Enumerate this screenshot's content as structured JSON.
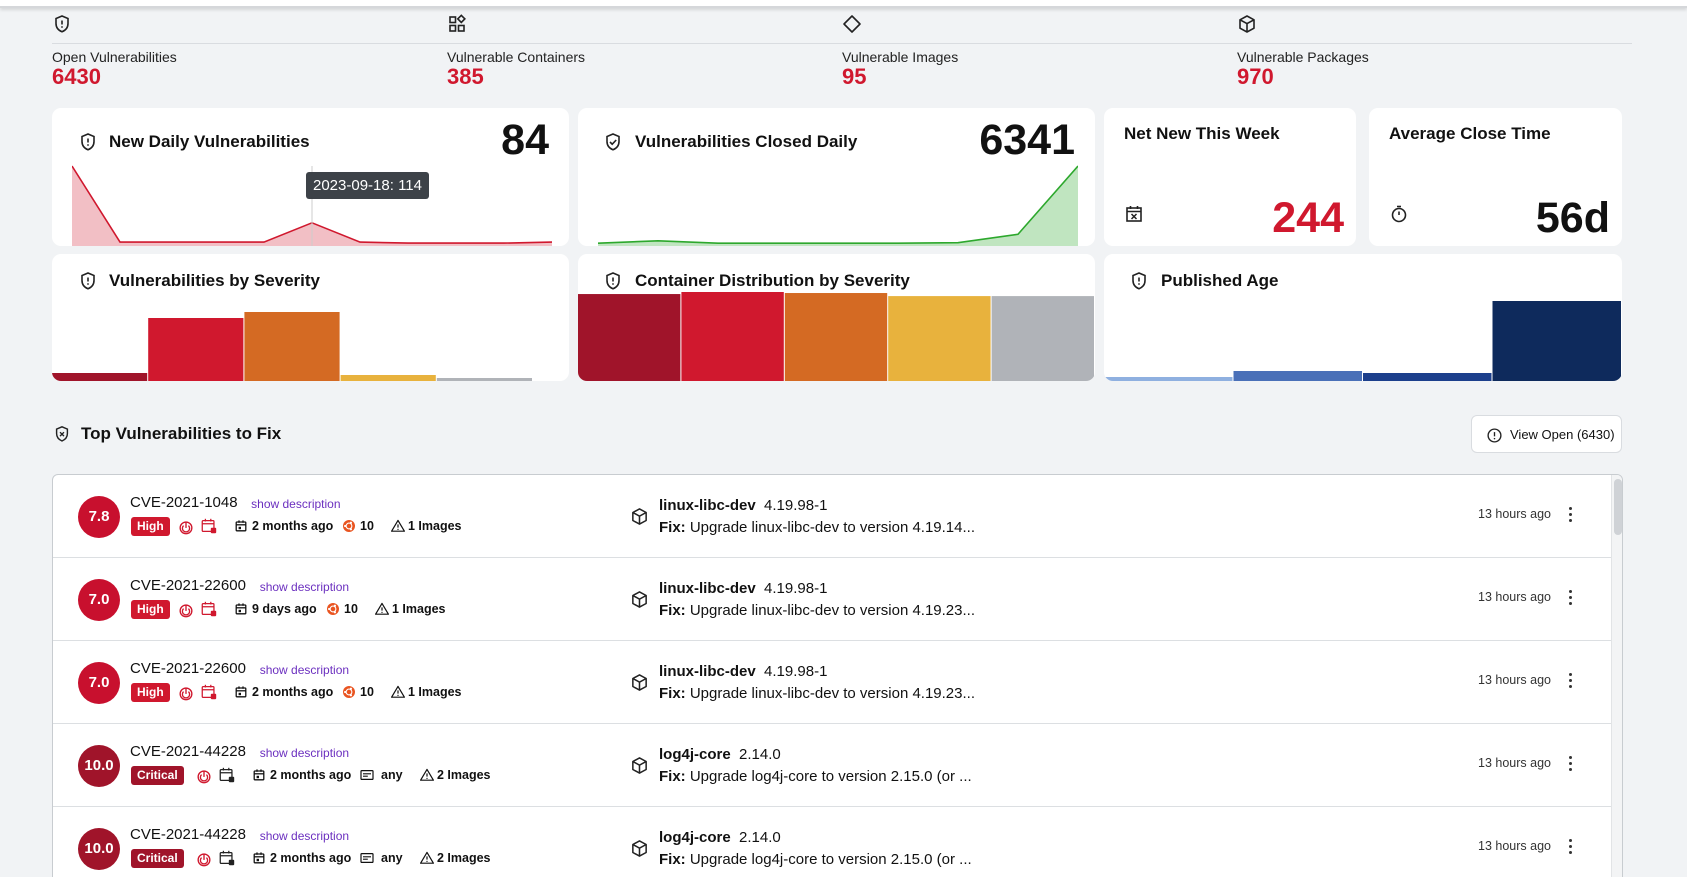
{
  "kpis": [
    {
      "label": "Open Vulnerabilities",
      "value": "6430",
      "icon": "shield-alert-icon"
    },
    {
      "label": "Vulnerable Containers",
      "value": "385",
      "icon": "containers-icon"
    },
    {
      "label": "Vulnerable Images",
      "value": "95",
      "icon": "diamond-icon"
    },
    {
      "label": "Vulnerable Packages",
      "value": "970",
      "icon": "package-icon"
    }
  ],
  "cards": {
    "new_daily": {
      "title": "New Daily Vulnerabilities",
      "value": "84",
      "tooltip": "2023-09-18: 114"
    },
    "closed_daily": {
      "title": "Vulnerabilities Closed Daily",
      "value": "6341"
    },
    "net_new": {
      "title": "Net New This Week",
      "value": "244"
    },
    "avg_close": {
      "title": "Average Close Time",
      "value": "56d"
    },
    "by_severity": {
      "title": "Vulnerabilities by Severity"
    },
    "container_dist": {
      "title": "Container Distribution by Severity"
    },
    "published_age": {
      "title": "Published Age"
    }
  },
  "chart_data": [
    {
      "type": "area",
      "title": "New Daily Vulnerabilities",
      "values": [
        420,
        10,
        10,
        10,
        10,
        114,
        10,
        5,
        5,
        5,
        10
      ],
      "highlight": {
        "label": "2023-09-18",
        "value": 114
      },
      "color": "#d0182e"
    },
    {
      "type": "area",
      "title": "Vulnerabilities Closed Daily",
      "values": [
        5,
        20,
        5,
        5,
        5,
        5,
        8,
        60,
        480
      ],
      "color": "#2da82d"
    },
    {
      "type": "bar",
      "title": "Vulnerabilities by Severity",
      "values": [
        8,
        63,
        69,
        6,
        3
      ],
      "colors": [
        "#a0142a",
        "#d0182e",
        "#d46a23",
        "#e8b23d",
        "#b0b3b8"
      ]
    },
    {
      "type": "bar",
      "title": "Container Distribution by Severity",
      "values": [
        85,
        87,
        86,
        83,
        83
      ],
      "colors": [
        "#a0142a",
        "#d0182e",
        "#d46a23",
        "#e8b23d",
        "#b0b3b8"
      ]
    },
    {
      "type": "bar",
      "title": "Published Age",
      "values": [
        4,
        10,
        8,
        80
      ],
      "colors": [
        "#8fb0e0",
        "#4a70b8",
        "#1c3f8c",
        "#0e2a5c"
      ]
    }
  ],
  "section": {
    "title": "Top Vulnerabilities to Fix",
    "view_button": "View Open (6430)"
  },
  "rows": [
    {
      "score": "7.8",
      "cve": "CVE-2021-1048",
      "desc_link": "show description",
      "severity": "High",
      "published": "2 months ago",
      "distro": "10",
      "distro_icon": "ubuntu-icon",
      "images": "1 Images",
      "package": "linux-libc-dev",
      "version": "4.19.98-1",
      "fix_label": "Fix:",
      "fix": "Upgrade linux-libc-dev to version 4.19.14...",
      "ago": "13 hours ago"
    },
    {
      "score": "7.0",
      "cve": "CVE-2021-22600",
      "desc_link": "show description",
      "severity": "High",
      "published": "9 days ago",
      "distro": "10",
      "distro_icon": "ubuntu-icon",
      "images": "1 Images",
      "package": "linux-libc-dev",
      "version": "4.19.98-1",
      "fix_label": "Fix:",
      "fix": "Upgrade linux-libc-dev to version 4.19.23...",
      "ago": "13 hours ago"
    },
    {
      "score": "7.0",
      "cve": "CVE-2021-22600",
      "desc_link": "show description",
      "severity": "High",
      "published": "2 months ago",
      "distro": "10",
      "distro_icon": "ubuntu-icon",
      "images": "1 Images",
      "package": "linux-libc-dev",
      "version": "4.19.98-1",
      "fix_label": "Fix:",
      "fix": "Upgrade linux-libc-dev to version 4.19.23...",
      "ago": "13 hours ago"
    },
    {
      "score": "10.0",
      "cve": "CVE-2021-44228",
      "desc_link": "show description",
      "severity": "Critical",
      "published": "2 months ago",
      "distro": "any",
      "distro_icon": "card-icon",
      "images": "2 Images",
      "package": "log4j-core",
      "version": "2.14.0",
      "fix_label": "Fix:",
      "fix": "Upgrade log4j-core to version 2.15.0 (or ...",
      "ago": "13 hours ago"
    },
    {
      "score": "10.0",
      "cve": "CVE-2021-44228",
      "desc_link": "show description",
      "severity": "Critical",
      "published": "2 months ago",
      "distro": "any",
      "distro_icon": "card-icon",
      "images": "2 Images",
      "package": "log4j-core",
      "version": "2.14.0",
      "fix_label": "Fix:",
      "fix": "Upgrade log4j-core to version 2.15.0 (or ...",
      "ago": "13 hours ago"
    }
  ]
}
